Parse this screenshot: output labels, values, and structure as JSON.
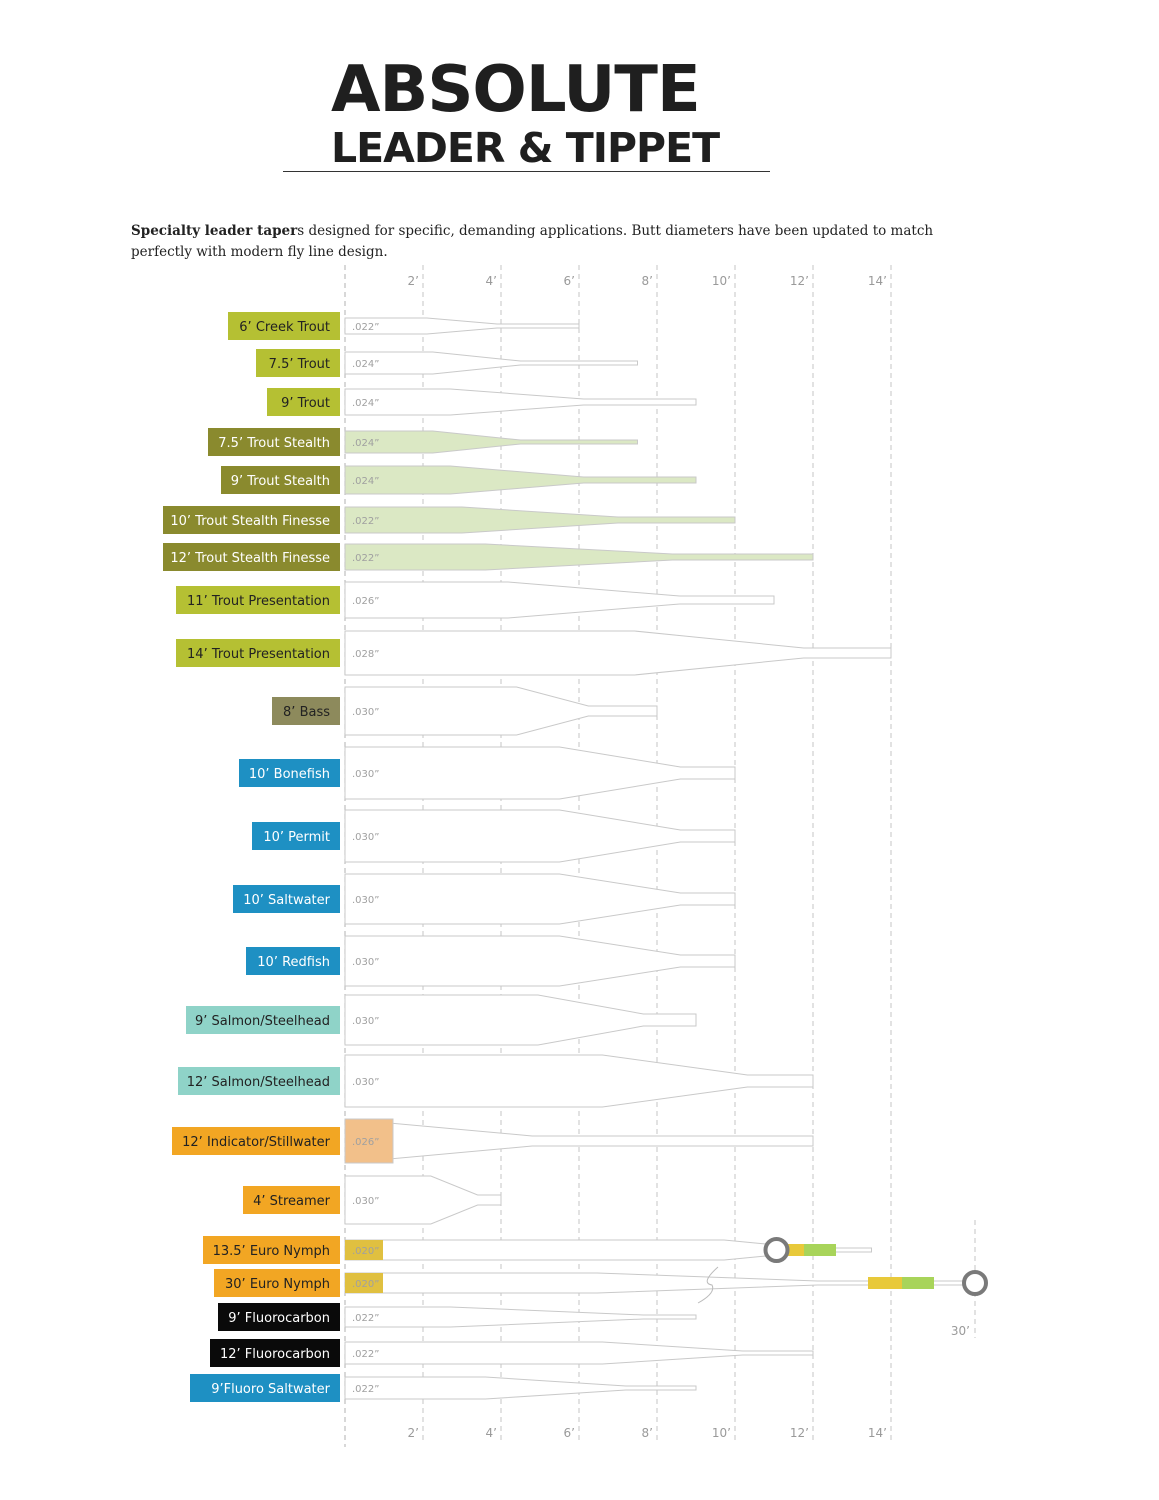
{
  "header": {
    "title": "ABSOLUTE",
    "subtitle": "LEADER & TIPPET",
    "intro_bold": "Specialty leader taper",
    "intro_rest": "s designed for specific, demanding applications.  Butt diameters have been updated to match perfectly with modern fly line design."
  },
  "chart_data": {
    "type": "diagram",
    "axis": {
      "unit": "ft",
      "ticks": [
        "2’",
        "4’",
        "6’",
        "8’",
        "10’",
        "12’",
        "14’"
      ],
      "tick_values": [
        2,
        4,
        6,
        8,
        10,
        12,
        14
      ],
      "extra_tick": "30’"
    },
    "colors": {
      "trout": "#b5c033",
      "stealth": "#8a8a2e",
      "bass": "#8d8a5c",
      "salt": "#1e90c3",
      "salmon": "#8fd3c8",
      "orange": "#f2a623",
      "fluoro": "#0a0a0a",
      "stealth_fill": "#dbe8c4",
      "indicator_fill": "#f2c08a",
      "euro_butt": "#e0c040",
      "euro_yellow": "#e8c93a",
      "euro_green": "#a8d45a"
    },
    "leaders": [
      {
        "label": "6’ Creek Trout",
        "butt": ".022”",
        "length": 6,
        "color": "trout",
        "text_color": "#222222"
      },
      {
        "label": "7.5’ Trout",
        "butt": ".024”",
        "length": 7.5,
        "color": "trout",
        "text_color": "#222222"
      },
      {
        "label": "9’ Trout",
        "butt": ".024”",
        "length": 9,
        "color": "trout",
        "text_color": "#222222"
      },
      {
        "label": "7.5’ Trout Stealth",
        "butt": ".024”",
        "length": 7.5,
        "color": "stealth",
        "text_color": "#ffffff"
      },
      {
        "label": "9’ Trout Stealth",
        "butt": ".024”",
        "length": 9,
        "color": "stealth",
        "text_color": "#ffffff"
      },
      {
        "label": "10’ Trout Stealth Finesse",
        "butt": ".022”",
        "length": 10,
        "color": "stealth",
        "text_color": "#ffffff"
      },
      {
        "label": "12’ Trout Stealth Finesse",
        "butt": ".022”",
        "length": 12,
        "color": "stealth",
        "text_color": "#ffffff"
      },
      {
        "label": "11’ Trout Presentation",
        "butt": ".026”",
        "length": 11,
        "color": "trout",
        "text_color": "#222222"
      },
      {
        "label": "14’ Trout Presentation",
        "butt": ".028”",
        "length": 14,
        "color": "trout",
        "text_color": "#222222"
      },
      {
        "label": "8’ Bass",
        "butt": ".030”",
        "length": 8,
        "color": "bass",
        "text_color": "#222222"
      },
      {
        "label": "10’ Bonefish",
        "butt": ".030”",
        "length": 10,
        "color": "salt",
        "text_color": "#ffffff"
      },
      {
        "label": "10’ Permit",
        "butt": ".030”",
        "length": 10,
        "color": "salt",
        "text_color": "#ffffff"
      },
      {
        "label": "10’ Saltwater",
        "butt": ".030”",
        "length": 10,
        "color": "salt",
        "text_color": "#ffffff"
      },
      {
        "label": "10’ Redfish",
        "butt": ".030”",
        "length": 10,
        "color": "salt",
        "text_color": "#ffffff"
      },
      {
        "label": "9’ Salmon/Steelhead",
        "butt": ".030”",
        "length": 9,
        "color": "salmon",
        "text_color": "#222222"
      },
      {
        "label": "12’ Salmon/Steelhead",
        "butt": ".030”",
        "length": 12,
        "color": "salmon",
        "text_color": "#222222"
      },
      {
        "label": "12’ Indicator/Stillwater",
        "butt": ".026”",
        "length": 12,
        "color": "orange",
        "text_color": "#222222"
      },
      {
        "label": "4’ Streamer",
        "butt": ".030”",
        "length": 4,
        "color": "orange",
        "text_color": "#222222"
      },
      {
        "label": "13.5’ Euro Nymph",
        "butt": ".020”",
        "length": 13.5,
        "color": "orange",
        "text_color": "#222222"
      },
      {
        "label": "30’ Euro Nymph",
        "butt": ".020”",
        "length": 30,
        "color": "orange",
        "text_color": "#222222"
      },
      {
        "label": "9’ Fluorocarbon",
        "butt": ".022”",
        "length": 9,
        "color": "fluoro",
        "text_color": "#ffffff"
      },
      {
        "label": "12’ Fluorocarbon",
        "butt": ".022”",
        "length": 12,
        "color": "fluoro",
        "text_color": "#ffffff"
      },
      {
        "label": "9’Fluoro Saltwater",
        "butt": ".022”",
        "length": 9,
        "color": "salt",
        "text_color": "#ffffff"
      }
    ]
  }
}
